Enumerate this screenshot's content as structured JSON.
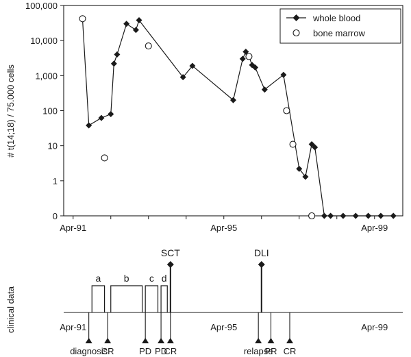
{
  "chart_data": [
    {
      "type": "line",
      "ylabel": "# t(14;18) / 75.000 cells",
      "y_scale": "log",
      "y_ticks": [
        "100,000",
        "10,000",
        "1,000",
        "100",
        "10",
        "1",
        "0"
      ],
      "x_ticks": [
        "Apr-91",
        "Apr-95",
        "Apr-99"
      ],
      "xlim": [
        "1991-01",
        "2000-01"
      ],
      "ylim": [
        0,
        100000
      ],
      "legend": {
        "position": "top-right",
        "entries": [
          {
            "label": "whole blood",
            "marker": "filled-diamond"
          },
          {
            "label": "bone marrow",
            "marker": "open-circle"
          }
        ]
      },
      "series": [
        {
          "name": "whole blood",
          "marker": "filled-diamond",
          "connected": true,
          "points": [
            {
              "x": "1991-07",
              "y": 40000
            },
            {
              "x": "1991-09",
              "y": 38
            },
            {
              "x": "1992-01",
              "y": 62
            },
            {
              "x": "1992-04",
              "y": 80
            },
            {
              "x": "1992-05",
              "y": 2200
            },
            {
              "x": "1992-06",
              "y": 4000
            },
            {
              "x": "1992-09",
              "y": 30000
            },
            {
              "x": "1992-12",
              "y": 20000
            },
            {
              "x": "1993-01",
              "y": 38000
            },
            {
              "x": "1994-03",
              "y": 900
            },
            {
              "x": "1994-06",
              "y": 1900
            },
            {
              "x": "1995-07",
              "y": 200
            },
            {
              "x": "1995-10",
              "y": 3000
            },
            {
              "x": "1995-11",
              "y": 4800
            },
            {
              "x": "1995-12",
              "y": 3500
            },
            {
              "x": "1996-01",
              "y": 2000
            },
            {
              "x": "1996-02",
              "y": 1700
            },
            {
              "x": "1996-05",
              "y": 400
            },
            {
              "x": "1996-11",
              "y": 1050
            },
            {
              "x": "1997-04",
              "y": 2.2
            },
            {
              "x": "1997-06",
              "y": 1.3
            },
            {
              "x": "1997-08",
              "y": 11
            },
            {
              "x": "1997-09",
              "y": 9
            },
            {
              "x": "1997-12",
              "y": 0
            },
            {
              "x": "1998-02",
              "y": 0
            },
            {
              "x": "1998-06",
              "y": 0
            },
            {
              "x": "1998-10",
              "y": 0
            },
            {
              "x": "1999-02",
              "y": 0
            },
            {
              "x": "1999-06",
              "y": 0
            },
            {
              "x": "1999-10",
              "y": 0
            }
          ]
        },
        {
          "name": "bone marrow",
          "marker": "open-circle",
          "connected": false,
          "points": [
            {
              "x": "1991-07",
              "y": 42000
            },
            {
              "x": "1992-02",
              "y": 4.5
            },
            {
              "x": "1993-04",
              "y": 7000
            },
            {
              "x": "1995-12",
              "y": 3500
            },
            {
              "x": "1996-12",
              "y": 100
            },
            {
              "x": "1997-02",
              "y": 11
            },
            {
              "x": "1997-08",
              "y": 0
            }
          ]
        }
      ]
    },
    {
      "type": "timeline",
      "ylabel": "clinical data",
      "x_ticks": [
        "Apr-91",
        "Apr-95",
        "Apr-99"
      ],
      "xlim": [
        "1991-01",
        "2000-01"
      ],
      "treatment_blocks": [
        {
          "label": "a",
          "start": "1991-10",
          "end": "1992-02"
        },
        {
          "label": "b",
          "start": "1992-04",
          "end": "1993-02"
        },
        {
          "label": "c",
          "start": "1993-03",
          "end": "1993-07"
        },
        {
          "label": "d",
          "start": "1993-08",
          "end": "1993-10"
        }
      ],
      "interventions": [
        {
          "label": "SCT",
          "date": "1993-11"
        },
        {
          "label": "DLI",
          "date": "1996-04"
        }
      ],
      "events": [
        {
          "label": "diagnosis",
          "date": "1991-09"
        },
        {
          "label": "CR",
          "date": "1992-03"
        },
        {
          "label": "PD",
          "date": "1993-03"
        },
        {
          "label": "PD",
          "date": "1993-08"
        },
        {
          "label": "CR",
          "date": "1993-11"
        },
        {
          "label": "relapse",
          "date": "1996-03"
        },
        {
          "label": "PR",
          "date": "1996-07"
        },
        {
          "label": "CR",
          "date": "1997-01"
        }
      ]
    }
  ]
}
